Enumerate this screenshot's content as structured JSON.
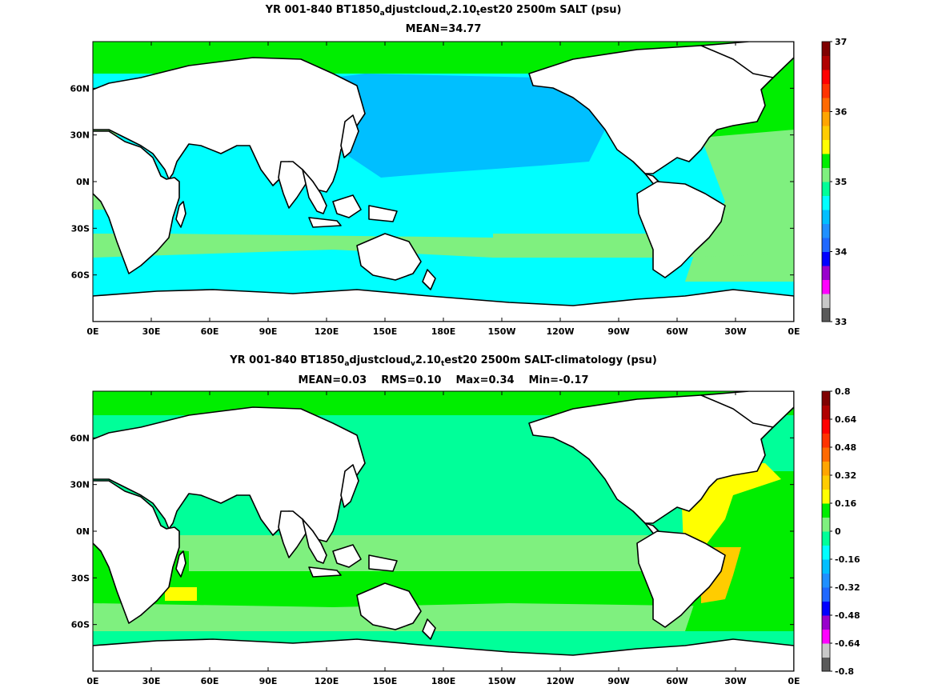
{
  "panels": [
    {
      "title": {
        "a": "YR 001-840 BT1850",
        "s1": "a",
        "b": "djustcloud",
        "s2": "v",
        "c": "2.10",
        "s3": "t",
        "d": "est20 2500m SALT (psu)"
      },
      "stats": [
        "MEAN=34.77"
      ],
      "colorbar": {
        "ticks": [
          "33",
          "34",
          "35",
          "36",
          "37"
        ],
        "colors": [
          "#5a5a5a",
          "#c8c8c8",
          "#ff00ff",
          "#9900cc",
          "#0000ff",
          "#1f68ff",
          "#2090ff",
          "#00bfff",
          "#00ffff",
          "#00ff99",
          "#7ff07f",
          "#00ee00",
          "#ffff00",
          "#ffcc00",
          "#ffa500",
          "#ff6a00",
          "#ff3300",
          "#ff0000",
          "#b00000",
          "#7f0000"
        ]
      },
      "regions": [
        {
          "name": "north-pacific-low-salinity",
          "color": "#00bfff"
        },
        {
          "name": "tropical-indo-pacific",
          "color": "#00ffff"
        },
        {
          "name": "southern-ocean",
          "color": "#00ffff"
        },
        {
          "name": "south-atlantic",
          "color": "#7ff07f"
        },
        {
          "name": "north-atlantic",
          "color": "#00ee00"
        }
      ]
    },
    {
      "title": {
        "a": "YR 001-840 BT1850",
        "s1": "a",
        "b": "djustcloud",
        "s2": "v",
        "c": "2.10",
        "s3": "t",
        "d": "est20 2500m SALT-climatology (psu)"
      },
      "stats": [
        "MEAN=0.03",
        "RMS=0.10",
        "Max=0.34",
        "Min=-0.17"
      ],
      "colorbar": {
        "ticks": [
          "-0.8",
          "-0.64",
          "-0.48",
          "-0.32",
          "-0.16",
          "0",
          "0.16",
          "0.32",
          "0.48",
          "0.64",
          "0.8"
        ],
        "colors": [
          "#5a5a5a",
          "#c8c8c8",
          "#ff00ff",
          "#9900cc",
          "#0000ff",
          "#1f68ff",
          "#2090ff",
          "#00bfff",
          "#00ffff",
          "#00ff99",
          "#7ff07f",
          "#00ee00",
          "#ffff00",
          "#ffcc00",
          "#ffa500",
          "#ff6a00",
          "#ff3300",
          "#ff0000",
          "#b00000",
          "#7f0000"
        ]
      },
      "regions": [
        {
          "name": "pacific-near-zero",
          "color": "#00ff99"
        },
        {
          "name": "southern-ocean-positive",
          "color": "#00ee00"
        },
        {
          "name": "north-atlantic-high",
          "color": "#ffff00"
        },
        {
          "name": "south-atlantic-high",
          "color": "#ffcc00"
        }
      ]
    }
  ],
  "axes": {
    "x_ticks": [
      "0E",
      "30E",
      "60E",
      "90E",
      "120E",
      "150E",
      "180E",
      "150W",
      "120W",
      "90W",
      "60W",
      "30W",
      "0E"
    ],
    "y_ticks": [
      "60N",
      "30N",
      "0N",
      "30S",
      "60S"
    ]
  }
}
